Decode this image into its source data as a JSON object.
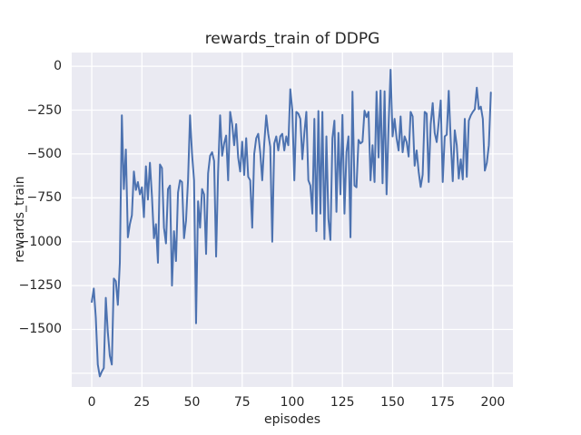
{
  "figure": {
    "title": "rewards_train of DDPG",
    "xlabel": "episodes",
    "ylabel": "rewards_train"
  },
  "chart_data": {
    "type": "line",
    "title": "rewards_train of DDPG",
    "xlabel": "episodes",
    "ylabel": "rewards_train",
    "grid": true,
    "legend": false,
    "xlim": [
      -10,
      210
    ],
    "ylim": [
      -1828,
      78
    ],
    "xticks": [
      0,
      25,
      50,
      75,
      100,
      125,
      150,
      175,
      200
    ],
    "yticks_labeled": [
      0,
      -250,
      -500,
      -750,
      -1000,
      -1250,
      -1500
    ],
    "yticks_grid": [
      0,
      -250,
      -500,
      -750,
      -1000,
      -1250,
      -1500,
      -1750
    ],
    "colors": {
      "fig_bg": "#ffffff",
      "plot_bg": "#eaeaf2",
      "grid": "#ffffff",
      "line": "#4c72b0",
      "text": "#262626"
    },
    "x_start": 0,
    "x_step": 1,
    "series": [
      {
        "name": "rewards_train",
        "color": "#4c72b0",
        "values": [
          -1343,
          -1267,
          -1431,
          -1700,
          -1768,
          -1740,
          -1720,
          -1320,
          -1515,
          -1650,
          -1700,
          -1210,
          -1225,
          -1360,
          -1120,
          -280,
          -700,
          -475,
          -975,
          -900,
          -850,
          -600,
          -705,
          -660,
          -730,
          -690,
          -860,
          -570,
          -760,
          -550,
          -740,
          -980,
          -900,
          -1120,
          -560,
          -580,
          -920,
          -1010,
          -700,
          -680,
          -1250,
          -940,
          -1110,
          -720,
          -650,
          -660,
          -980,
          -880,
          -650,
          -280,
          -500,
          -650,
          -1465,
          -770,
          -920,
          -700,
          -730,
          -1070,
          -610,
          -510,
          -490,
          -540,
          -1085,
          -600,
          -280,
          -510,
          -440,
          -395,
          -650,
          -260,
          -330,
          -450,
          -330,
          -520,
          -600,
          -430,
          -620,
          -410,
          -630,
          -650,
          -920,
          -500,
          -410,
          -385,
          -490,
          -650,
          -440,
          -280,
          -385,
          -460,
          -1000,
          -440,
          -400,
          -480,
          -400,
          -385,
          -480,
          -400,
          -450,
          -131,
          -250,
          -650,
          -260,
          -270,
          -300,
          -530,
          -380,
          -260,
          -650,
          -680,
          -840,
          -300,
          -940,
          -255,
          -840,
          -260,
          -985,
          -400,
          -870,
          -990,
          -410,
          -310,
          -830,
          -380,
          -730,
          -277,
          -840,
          -490,
          -400,
          -975,
          -145,
          -680,
          -690,
          -420,
          -440,
          -430,
          -253,
          -290,
          -260,
          -650,
          -450,
          -660,
          -145,
          -520,
          -138,
          -667,
          -143,
          -730,
          -335,
          -20,
          -400,
          -300,
          -410,
          -480,
          -286,
          -490,
          -400,
          -432,
          -515,
          -260,
          -286,
          -567,
          -480,
          -601,
          -688,
          -618,
          -260,
          -270,
          -660,
          -330,
          -210,
          -380,
          -432,
          -320,
          -195,
          -660,
          -400,
          -390,
          -140,
          -425,
          -655,
          -365,
          -450,
          -640,
          -530,
          -645,
          -300,
          -630,
          -310,
          -280,
          -260,
          -245,
          -122,
          -245,
          -230,
          -300,
          -595,
          -550,
          -450,
          -150
        ]
      }
    ]
  }
}
